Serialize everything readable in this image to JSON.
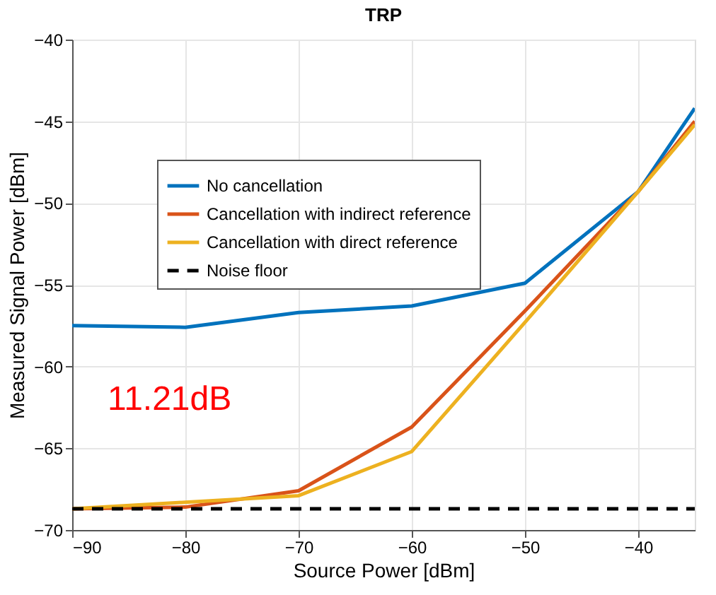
{
  "chart_data": {
    "type": "line",
    "title": "TRP",
    "xlabel": "Source Power [dBm]",
    "ylabel": "Measured Signal Power [dBm]",
    "x": [
      -90,
      -80,
      -70,
      -60,
      -50,
      -40,
      -35
    ],
    "series": [
      {
        "name": "No cancellation",
        "color": "#0072bd",
        "values": [
          -57.5,
          -57.6,
          -56.7,
          -56.3,
          -54.9,
          -49.3,
          -44.2
        ]
      },
      {
        "name": "Cancellation with indirect reference",
        "color": "#d95319",
        "values": [
          -68.7,
          -68.6,
          -67.6,
          -63.7,
          -56.6,
          -49.3,
          -45.0
        ]
      },
      {
        "name": "Cancellation with direct reference",
        "color": "#edb120",
        "values": [
          -68.7,
          -68.3,
          -67.9,
          -65.2,
          -57.3,
          -49.3,
          -45.2
        ]
      },
      {
        "name": "Noise floor",
        "color": "#000000",
        "line_style": "dashed",
        "values": [
          -68.7,
          -68.7,
          -68.7,
          -68.7,
          -68.7,
          -68.7,
          -68.7
        ]
      }
    ],
    "xlim": [
      -90,
      -35
    ],
    "ylim": [
      -70,
      -40
    ],
    "xticks": [
      -90,
      -80,
      -70,
      -60,
      -50,
      -40
    ],
    "yticks": [
      -70,
      -65,
      -60,
      -55,
      -50,
      -45,
      -40
    ],
    "annotations": [
      "11.21dB"
    ],
    "grid": true,
    "legend": "left",
    "marker": "none",
    "line_style": "solid"
  }
}
